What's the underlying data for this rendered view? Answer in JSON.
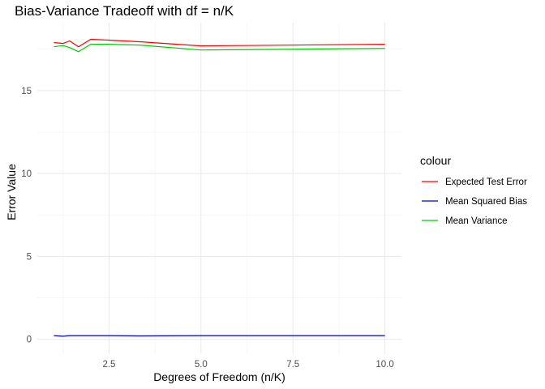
{
  "chart_data": {
    "type": "line",
    "title": "Bias-Variance Tradeoff with df = n/K",
    "xlabel": "Degrees of Freedom (n/K)",
    "ylabel": "Error Value",
    "xlim": [
      0.55,
      10.45
    ],
    "ylim": [
      -0.9,
      19.1
    ],
    "x_ticks": [
      2.5,
      5.0,
      7.5,
      10.0
    ],
    "x_tick_labels": [
      "2.5",
      "5.0",
      "7.5",
      "10.0"
    ],
    "y_ticks": [
      0,
      5,
      10,
      15
    ],
    "y_tick_labels": [
      "0",
      "5",
      "10",
      "15"
    ],
    "grid": true,
    "legend": {
      "title": "colour",
      "position": "right",
      "entries": [
        "Expected Test Error",
        "Mean Squared Bias",
        "Mean Variance"
      ]
    },
    "series": [
      {
        "name": "Expected Test Error",
        "color": "#ff0000",
        "x": [
          1.0,
          1.25,
          1.43,
          1.67,
          2.0,
          2.5,
          3.33,
          5.0,
          10.0
        ],
        "y": [
          17.9,
          17.85,
          18.0,
          17.65,
          18.1,
          18.05,
          17.95,
          17.7,
          17.8
        ]
      },
      {
        "name": "Mean Squared Bias",
        "color": "#0000cc",
        "x": [
          1.0,
          1.25,
          1.43,
          1.67,
          2.0,
          2.5,
          3.33,
          5.0,
          10.0
        ],
        "y": [
          0.22,
          0.18,
          0.22,
          0.22,
          0.22,
          0.22,
          0.2,
          0.22,
          0.22
        ]
      },
      {
        "name": "Mean Variance",
        "color": "#00cc00",
        "x": [
          1.0,
          1.25,
          1.43,
          1.67,
          2.0,
          2.5,
          3.33,
          5.0,
          10.0
        ],
        "y": [
          17.65,
          17.72,
          17.6,
          17.35,
          17.8,
          17.8,
          17.75,
          17.45,
          17.55
        ]
      }
    ]
  }
}
